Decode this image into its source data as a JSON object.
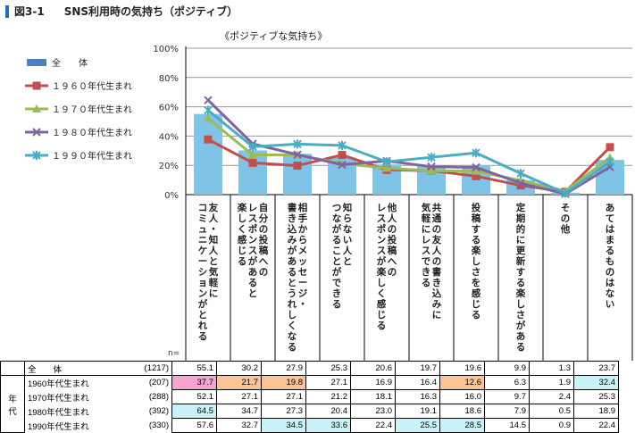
{
  "title": {
    "fig": "図3-1",
    "text": "SNS利用時の気持ち（ポジティブ）"
  },
  "chart_data": {
    "type": "bar+line",
    "title": "《ポジティブな気持ち》",
    "ylim": [
      0,
      100
    ],
    "yticks": [
      "0%",
      "20%",
      "40%",
      "60%",
      "80%",
      "100%"
    ],
    "grid": true,
    "legend": "left",
    "n_label": "n=",
    "categories": [
      "友人・知人と気軽に\nコミュニケーションがとれる",
      "自分の投稿への\nレスポンスがあると\n楽しく感じる",
      "相手からメッセージ・\n書き込みがあるとうれしくなる",
      "知らない人と\nつながることができる",
      "他人の投稿への\nレスポンスが楽しく感じる",
      "共通の友人の書き込みに\n気軽にレスできる",
      "投稿する楽しさを感じる",
      "定期的に更新する楽しさがある",
      "その他",
      "あてはまるものはない"
    ],
    "series": [
      {
        "name": "全　　体",
        "legend": "全　　体",
        "type": "bar",
        "color": "#7fc4e6",
        "n": "(1217)",
        "values": [
          55.1,
          30.2,
          27.9,
          25.3,
          20.6,
          19.7,
          19.6,
          9.9,
          1.3,
          23.7
        ]
      },
      {
        "name": "1960年代生まれ",
        "legend": "１９６０年代生まれ",
        "type": "line",
        "marker": "square",
        "color": "#c0504d",
        "n": "(207)",
        "values": [
          37.7,
          21.7,
          19.8,
          27.1,
          16.9,
          16.4,
          12.6,
          6.3,
          1.9,
          32.4
        ],
        "highlights": [
          "#f7a3d2",
          "#fac493",
          "#fac493",
          null,
          null,
          null,
          "#fac493",
          null,
          null,
          "#c9f3f8"
        ]
      },
      {
        "name": "1970年代生まれ",
        "legend": "１９７０年代生まれ",
        "type": "line",
        "marker": "triangle",
        "color": "#9bbb59",
        "n": "(288)",
        "values": [
          52.1,
          27.1,
          27.1,
          21.2,
          18.1,
          16.3,
          16.0,
          9.7,
          2.4,
          25.3
        ],
        "highlights": []
      },
      {
        "name": "1980年代生まれ",
        "legend": "１９８０年代生まれ",
        "type": "line",
        "marker": "x",
        "color": "#8064a2",
        "n": "(392)",
        "values": [
          64.5,
          34.7,
          27.3,
          20.4,
          23.0,
          19.1,
          18.6,
          7.9,
          0.5,
          18.9
        ],
        "highlights": [
          "#c9f3f8"
        ]
      },
      {
        "name": "1990年代生まれ",
        "legend": "１９９０年代生まれ",
        "type": "line",
        "marker": "star",
        "color": "#4bacc6",
        "n": "(330)",
        "values": [
          57.6,
          32.7,
          34.5,
          33.6,
          22.4,
          25.5,
          28.5,
          14.5,
          0.9,
          22.4
        ],
        "highlights": [
          null,
          null,
          "#c9f3f8",
          "#c9f3f8",
          null,
          "#c9f3f8",
          "#c9f3f8"
        ]
      }
    ],
    "group_label": "年代"
  }
}
